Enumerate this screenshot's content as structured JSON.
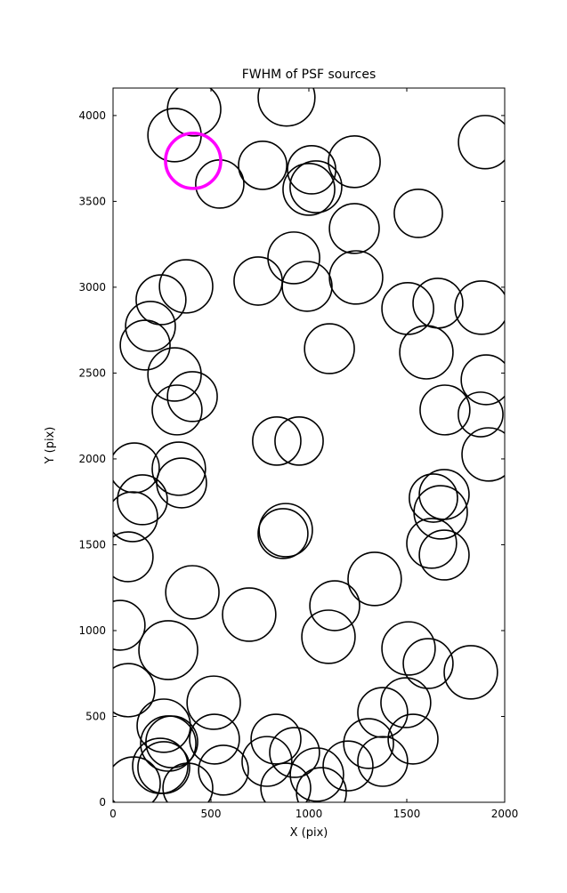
{
  "chart_data": {
    "type": "scatter",
    "title": "FWHM of PSF sources",
    "xlabel": "X (pix)",
    "ylabel": "Y (pix)",
    "xlim": [
      0,
      2000
    ],
    "ylim": [
      0,
      4160
    ],
    "xticks": [
      0,
      500,
      1000,
      1500,
      2000
    ],
    "yticks": [
      0,
      500,
      1000,
      1500,
      2000,
      2500,
      3000,
      3500,
      4000
    ],
    "grid": false,
    "legend": "none",
    "marker_style": "open-circle",
    "marker_color": "#000000",
    "highlight_color": "#ff00ff",
    "highlight": {
      "x": 409,
      "y": 3736,
      "r": 141
    },
    "points": [
      {
        "x": 414,
        "y": 4036,
        "r": 136
      },
      {
        "x": 886,
        "y": 4104,
        "r": 145
      },
      {
        "x": 314,
        "y": 3886,
        "r": 136
      },
      {
        "x": 1900,
        "y": 3845,
        "r": 136
      },
      {
        "x": 545,
        "y": 3601,
        "r": 123
      },
      {
        "x": 764,
        "y": 3710,
        "r": 123
      },
      {
        "x": 1014,
        "y": 3684,
        "r": 123
      },
      {
        "x": 1000,
        "y": 3570,
        "r": 132
      },
      {
        "x": 1036,
        "y": 3585,
        "r": 132
      },
      {
        "x": 1232,
        "y": 3731,
        "r": 132
      },
      {
        "x": 1559,
        "y": 3430,
        "r": 123
      },
      {
        "x": 923,
        "y": 3171,
        "r": 132
      },
      {
        "x": 991,
        "y": 3005,
        "r": 127
      },
      {
        "x": 1232,
        "y": 3342,
        "r": 127
      },
      {
        "x": 1241,
        "y": 3057,
        "r": 136
      },
      {
        "x": 741,
        "y": 3036,
        "r": 123
      },
      {
        "x": 373,
        "y": 3005,
        "r": 136
      },
      {
        "x": 245,
        "y": 2927,
        "r": 127
      },
      {
        "x": 1505,
        "y": 2876,
        "r": 132
      },
      {
        "x": 1659,
        "y": 2907,
        "r": 127
      },
      {
        "x": 1882,
        "y": 2881,
        "r": 136
      },
      {
        "x": 1105,
        "y": 2642,
        "r": 127
      },
      {
        "x": 1600,
        "y": 2621,
        "r": 136
      },
      {
        "x": 191,
        "y": 2772,
        "r": 127
      },
      {
        "x": 164,
        "y": 2663,
        "r": 127
      },
      {
        "x": 314,
        "y": 2492,
        "r": 136
      },
      {
        "x": 405,
        "y": 2363,
        "r": 127
      },
      {
        "x": 327,
        "y": 2285,
        "r": 127
      },
      {
        "x": 1905,
        "y": 2461,
        "r": 127
      },
      {
        "x": 1695,
        "y": 2285,
        "r": 127
      },
      {
        "x": 1877,
        "y": 2259,
        "r": 114
      },
      {
        "x": 836,
        "y": 2104,
        "r": 123
      },
      {
        "x": 950,
        "y": 2104,
        "r": 123
      },
      {
        "x": 1918,
        "y": 2026,
        "r": 136
      },
      {
        "x": 109,
        "y": 1948,
        "r": 127
      },
      {
        "x": 336,
        "y": 1943,
        "r": 136
      },
      {
        "x": 350,
        "y": 1860,
        "r": 127
      },
      {
        "x": 150,
        "y": 1762,
        "r": 127
      },
      {
        "x": 100,
        "y": 1663,
        "r": 127
      },
      {
        "x": 882,
        "y": 1585,
        "r": 136
      },
      {
        "x": 868,
        "y": 1565,
        "r": 127
      },
      {
        "x": 1691,
        "y": 1793,
        "r": 127
      },
      {
        "x": 1673,
        "y": 1689,
        "r": 136
      },
      {
        "x": 1636,
        "y": 1772,
        "r": 123
      },
      {
        "x": 1627,
        "y": 1508,
        "r": 127
      },
      {
        "x": 1691,
        "y": 1440,
        "r": 127
      },
      {
        "x": 77,
        "y": 1430,
        "r": 127
      },
      {
        "x": 405,
        "y": 1223,
        "r": 136
      },
      {
        "x": 1336,
        "y": 1301,
        "r": 136
      },
      {
        "x": 1132,
        "y": 1145,
        "r": 127
      },
      {
        "x": 695,
        "y": 1093,
        "r": 136
      },
      {
        "x": 1100,
        "y": 964,
        "r": 136
      },
      {
        "x": 36,
        "y": 1031,
        "r": 127
      },
      {
        "x": 282,
        "y": 886,
        "r": 150
      },
      {
        "x": 1509,
        "y": 896,
        "r": 136
      },
      {
        "x": 1609,
        "y": 808,
        "r": 127
      },
      {
        "x": 1827,
        "y": 757,
        "r": 136
      },
      {
        "x": 77,
        "y": 653,
        "r": 136
      },
      {
        "x": 514,
        "y": 580,
        "r": 136
      },
      {
        "x": 1495,
        "y": 580,
        "r": 127
      },
      {
        "x": 1377,
        "y": 523,
        "r": 127
      },
      {
        "x": 259,
        "y": 446,
        "r": 136
      },
      {
        "x": 282,
        "y": 342,
        "r": 141
      },
      {
        "x": 300,
        "y": 352,
        "r": 132
      },
      {
        "x": 518,
        "y": 368,
        "r": 127
      },
      {
        "x": 832,
        "y": 368,
        "r": 127
      },
      {
        "x": 927,
        "y": 290,
        "r": 127
      },
      {
        "x": 1305,
        "y": 342,
        "r": 127
      },
      {
        "x": 1532,
        "y": 368,
        "r": 127
      },
      {
        "x": 786,
        "y": 238,
        "r": 127
      },
      {
        "x": 241,
        "y": 212,
        "r": 141
      },
      {
        "x": 259,
        "y": 202,
        "r": 132
      },
      {
        "x": 564,
        "y": 187,
        "r": 127
      },
      {
        "x": 1041,
        "y": 161,
        "r": 136
      },
      {
        "x": 1200,
        "y": 212,
        "r": 127
      },
      {
        "x": 1377,
        "y": 238,
        "r": 127
      },
      {
        "x": 105,
        "y": 109,
        "r": 136
      },
      {
        "x": 382,
        "y": 83,
        "r": 127
      },
      {
        "x": 882,
        "y": 83,
        "r": 127
      },
      {
        "x": 1064,
        "y": 57,
        "r": 127
      }
    ]
  }
}
